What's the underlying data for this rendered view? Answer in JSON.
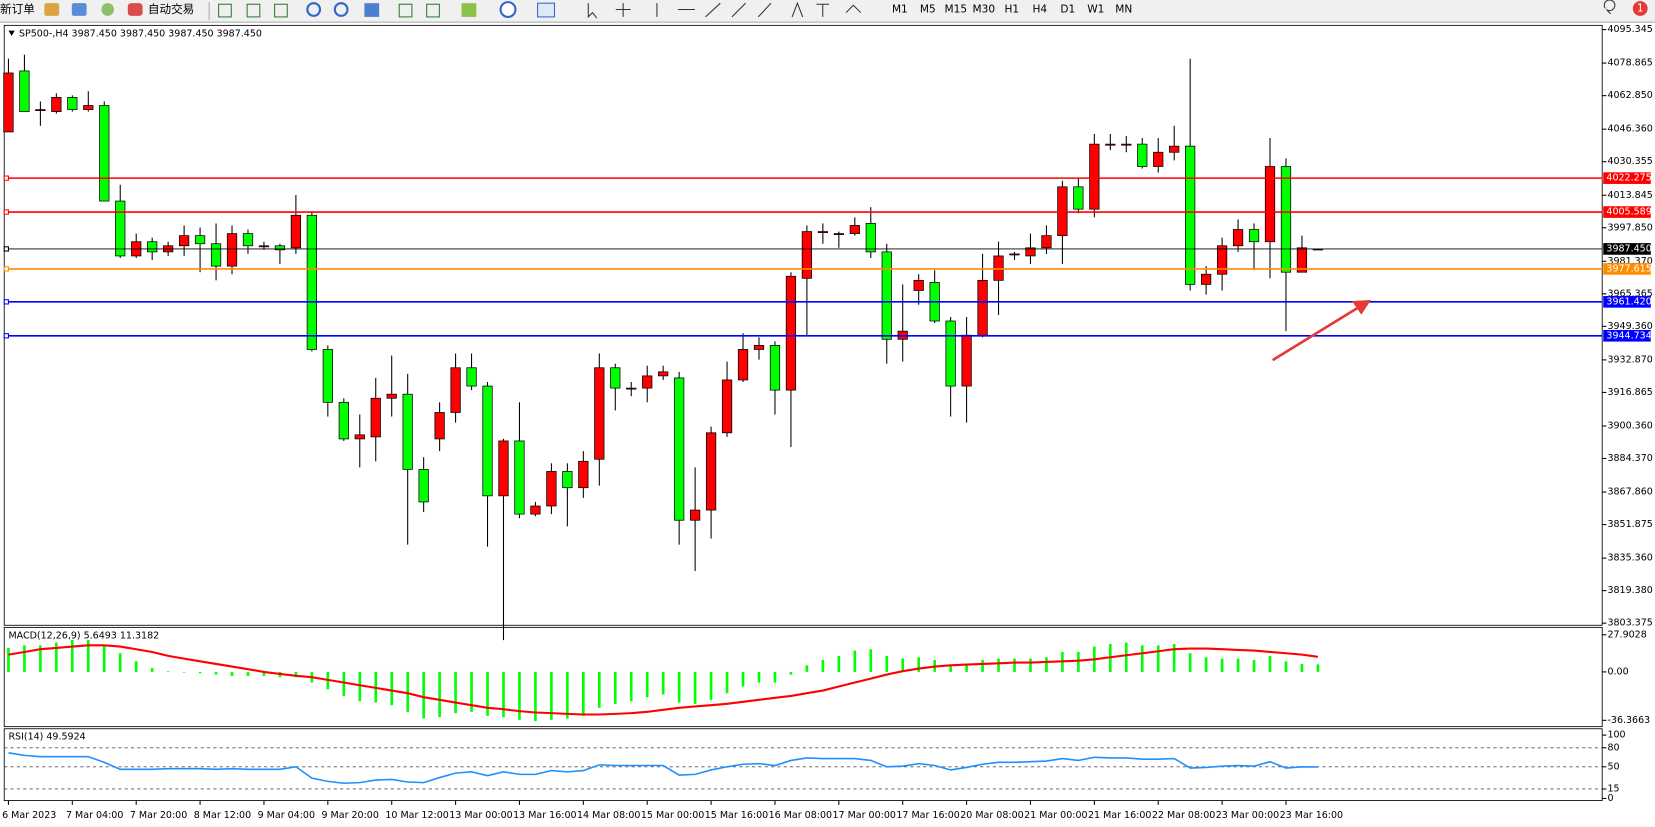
{
  "toolbar": {
    "new_order": "新订单",
    "auto_trading": "自动交易",
    "timeframes": [
      "M1",
      "M5",
      "M15",
      "M30",
      "H1",
      "H4",
      "D1",
      "W1",
      "MN"
    ],
    "notification_count": "1"
  },
  "chart_data": [
    {
      "type": "candlestick",
      "title": "SP500-,H4 3987.450 3987.450 3987.450 3987.450",
      "categories": [
        "6 Mar 2023",
        null,
        null,
        null,
        "7 Mar 04:00",
        null,
        null,
        null,
        "7 Mar 20:00",
        null,
        null,
        null,
        "8 Mar 12:00",
        null,
        null,
        null,
        "9 Mar 04:00",
        null,
        null,
        null,
        "9 Mar 20:00",
        null,
        null,
        null,
        "10 Mar 12:00",
        null,
        null,
        null,
        "13 Mar 00:00",
        null,
        null,
        null,
        "13 Mar 16:00",
        null,
        null,
        null,
        "14 Mar 08:00",
        null,
        null,
        null,
        "15 Mar 00:00",
        null,
        null,
        null,
        "15 Mar 16:00",
        null,
        null,
        null,
        "16 Mar 08:00",
        null,
        null,
        null,
        "17 Mar 00:00",
        null,
        null,
        null,
        "17 Mar 16:00",
        null,
        null,
        null,
        "20 Mar 08:00",
        null,
        null,
        null,
        "21 Mar 00:00",
        null,
        null,
        null,
        "21 Mar 16:00",
        null,
        null,
        null,
        "22 Mar 08:00",
        null,
        null,
        null,
        "23 Mar 00:00",
        null,
        null,
        null,
        "23 Mar 16:00",
        null,
        null
      ],
      "open": [
        4045,
        4075,
        4056,
        4055,
        4062,
        4056,
        4058,
        4011,
        3984,
        3991,
        3986,
        3989,
        3994,
        3990,
        3979,
        3995,
        3989,
        3989,
        3988,
        4004,
        3938,
        3912,
        3894,
        3895,
        3914,
        3916,
        3879,
        3894,
        3907,
        3929,
        3920,
        3866,
        3893,
        3857,
        3861,
        3878,
        3870,
        3884,
        3929,
        3919,
        3919,
        3925,
        3924,
        3854,
        3859,
        3897,
        3923,
        3938,
        3940,
        3918,
        3973,
        3996,
        3995,
        3995,
        4000,
        3986,
        3943,
        3967,
        3971,
        3952,
        3920,
        3945,
        3972,
        3985,
        3984,
        3988,
        3994,
        4018,
        4007,
        4039,
        4039,
        4039,
        4028,
        4035,
        4038,
        3970,
        3975,
        3989,
        3997,
        3991,
        4028,
        3976,
        3987.45
      ],
      "high": [
        4081,
        4083,
        4060,
        4064,
        4063,
        4065,
        4060,
        4019,
        3995,
        3993,
        3991,
        3999,
        3998,
        4000,
        3999,
        3997,
        3991,
        3990,
        4014,
        4006,
        3940,
        3914,
        3906,
        3924,
        3935,
        3926,
        3885,
        3912,
        3936,
        3936,
        3922,
        3894,
        3912,
        3863,
        3882,
        3882,
        3888,
        3936,
        3931,
        3922,
        3930,
        3930,
        3927,
        3880,
        3900,
        3932,
        3946,
        3944,
        3942,
        3976,
        3999,
        4000,
        3996,
        4003,
        4008,
        3990,
        3970,
        3975,
        3977,
        3954,
        3954,
        3985,
        3991,
        3986,
        3995,
        3999,
        4021,
        4022,
        4044,
        4044,
        4043,
        4042,
        4042,
        4048,
        4081,
        3979,
        3993,
        4002,
        4000,
        4042,
        4032,
        3994,
        3987.45
      ],
      "low": [
        4045,
        4055,
        4048,
        4054,
        4055,
        4055,
        4011,
        3983,
        3983,
        3982,
        3984,
        3984,
        3976,
        3972,
        3975,
        3985,
        3987,
        3980,
        3985,
        3937,
        3905,
        3893,
        3880,
        3883,
        3905,
        3842,
        3858,
        3888,
        3902,
        3918,
        3841,
        3795,
        3855,
        3856,
        3857,
        3851,
        3865,
        3871,
        3908,
        3915,
        3912,
        3923,
        3842,
        3829,
        3845,
        3895,
        3922,
        3933,
        3906,
        3890,
        3945,
        3990,
        3988,
        3994,
        3983,
        3931,
        3932,
        3960,
        3951,
        3905,
        3902,
        3944,
        3955,
        3982,
        3980,
        3985,
        3980,
        4005,
        4003,
        4036,
        4035,
        4027,
        4025,
        4031,
        3967,
        3965,
        3967,
        3986,
        3977,
        3973,
        3947,
        3976,
        3987.45
      ],
      "close": [
        4074,
        4055,
        4056,
        4062,
        4056,
        4058,
        4011,
        3984,
        3991,
        3986,
        3989,
        3994,
        3990,
        3979,
        3995,
        3989,
        3989,
        3987,
        4004,
        3938,
        3912,
        3894,
        3896,
        3914,
        3916,
        3879,
        3863,
        3907,
        3929,
        3920,
        3866,
        3893,
        3857,
        3861,
        3878,
        3870,
        3883,
        3929,
        3919,
        3919,
        3925,
        3927,
        3854,
        3859,
        3897,
        3923,
        3938,
        3940,
        3918,
        3974,
        3996,
        3996,
        3995,
        3999,
        3986,
        3943,
        3947,
        3972,
        3952,
        3920,
        3945,
        3972,
        3984,
        3985,
        3988,
        3994,
        4018,
        4007,
        4039,
        4039,
        4039,
        4028,
        4035,
        4038,
        3970,
        3975,
        3989,
        3997,
        3991,
        4028,
        3976,
        3988,
        3987.45
      ],
      "up_color": "#ff0000",
      "down_color": "#00ff00",
      "wick_color": "#000000",
      "ylim": [
        3803.375,
        4095.345
      ],
      "yticks": [
        4095.345,
        4078.865,
        {
          "value": 4062.85,
          "label": "4062.850"
        },
        {
          "value": 4046.36,
          "label": "4046.360"
        },
        4030.355,
        4013.845,
        {
          "value": 3997.85,
          "label": "3997.850"
        },
        {
          "value": 3981.37,
          "label": "3981.370"
        },
        3965.365,
        {
          "value": 3949.36,
          "label": "3949.360"
        },
        {
          "value": 3932.87,
          "label": "3932.870"
        },
        3916.865,
        {
          "value": 3900.36,
          "label": "3900.360"
        },
        {
          "value": 3884.37,
          "label": "3884.370"
        },
        {
          "value": 3867.86,
          "label": "3867.860"
        },
        3851.875,
        {
          "value": 3835.36,
          "label": "3835.360"
        },
        {
          "value": 3819.38,
          "label": "3819.380"
        },
        3803.375
      ],
      "levels": [
        {
          "value": 4022.275,
          "color": "#ff0000"
        },
        {
          "value": 4005.589,
          "color": "#ff0000"
        },
        {
          "value": 3987.45,
          "label": "3987.450",
          "color": "#000000"
        },
        {
          "value": 3977.615,
          "color": "#ff8c00"
        },
        {
          "value": 3961.42,
          "label": "3961.420",
          "color": "#0000ff"
        },
        {
          "value": 3944.734,
          "color": "#0000ff"
        }
      ]
    },
    {
      "type": "macd",
      "title": "MACD(12,26,9) 5.6493 11.3182",
      "series": [
        {
          "kind": "histogram",
          "color": "#00ff00",
          "values": [
            18,
            20,
            20,
            22,
            24,
            24,
            20,
            14,
            8,
            3,
            0.5,
            -0.5,
            -1,
            -2,
            -3,
            -3,
            -3,
            -4,
            -4,
            -8,
            -13,
            -18,
            -22,
            -23,
            -25,
            -30,
            -35,
            -34,
            -31,
            -30,
            -33,
            -34,
            -36,
            -37,
            -36,
            -35,
            -33,
            -27,
            -24,
            -22,
            -19,
            -17,
            -23,
            -24,
            -21,
            -16,
            -11,
            -8,
            -8,
            -2,
            5,
            9,
            12,
            16,
            17,
            12,
            10,
            11,
            9,
            5,
            6,
            9,
            10,
            10,
            10,
            11,
            15,
            15,
            19,
            21,
            22,
            20,
            20,
            21,
            14,
            11,
            10,
            10,
            9,
            12,
            8,
            6,
            5.6493
          ]
        },
        {
          "kind": "line",
          "color": "#ff0000",
          "values": [
            13,
            15,
            17,
            18,
            19,
            20,
            20,
            19,
            17,
            15,
            12,
            10,
            8,
            6,
            4,
            2,
            0,
            -1.5,
            -3,
            -4,
            -6,
            -8,
            -10,
            -12,
            -14,
            -16,
            -19,
            -21,
            -23,
            -25,
            -27,
            -28,
            -29.5,
            -30.5,
            -31,
            -31.5,
            -32,
            -32,
            -31.5,
            -31,
            -30,
            -28.5,
            -27,
            -26,
            -25,
            -24,
            -22.5,
            -21,
            -19.5,
            -18,
            -16,
            -14,
            -11,
            -8,
            -5,
            -2,
            0.5,
            2.5,
            4,
            5,
            5.5,
            6,
            6.5,
            7,
            7,
            7.5,
            8,
            8.5,
            9.5,
            11,
            12.5,
            14,
            15.5,
            17,
            17.5,
            17.5,
            17,
            16.5,
            16,
            15,
            14,
            13,
            11.3182
          ]
        }
      ],
      "ylim": [
        -36.3663,
        27.9028
      ],
      "yticks": [
        27.9028,
        {
          "value": 0,
          "label": "0.00"
        },
        -36.3663
      ]
    },
    {
      "type": "rsi",
      "title": "RSI(14) 49.5924",
      "series": [
        {
          "kind": "line",
          "color": "#1e90ff",
          "values": [
            72,
            68,
            66,
            66,
            66,
            66,
            57,
            46,
            46,
            46,
            47,
            47,
            47,
            46,
            47,
            46,
            46,
            46,
            50,
            32,
            27,
            24,
            25,
            29,
            30,
            26,
            25,
            33,
            40,
            42,
            36,
            42,
            38,
            38,
            44,
            42,
            44,
            53,
            52,
            52,
            52,
            52,
            37,
            38,
            45,
            50,
            54,
            55,
            52,
            60,
            64,
            63,
            63,
            63,
            60,
            50,
            51,
            55,
            52,
            45,
            49,
            54,
            57,
            57,
            58,
            59,
            63,
            60,
            65,
            64,
            64,
            62,
            62,
            63,
            48,
            49,
            51,
            52,
            51,
            58,
            48,
            50,
            49.5924
          ]
        }
      ],
      "ylim": [
        0,
        100
      ],
      "yticks": [
        100,
        80,
        50,
        15,
        0
      ],
      "levels": [
        80,
        50,
        15
      ]
    }
  ]
}
